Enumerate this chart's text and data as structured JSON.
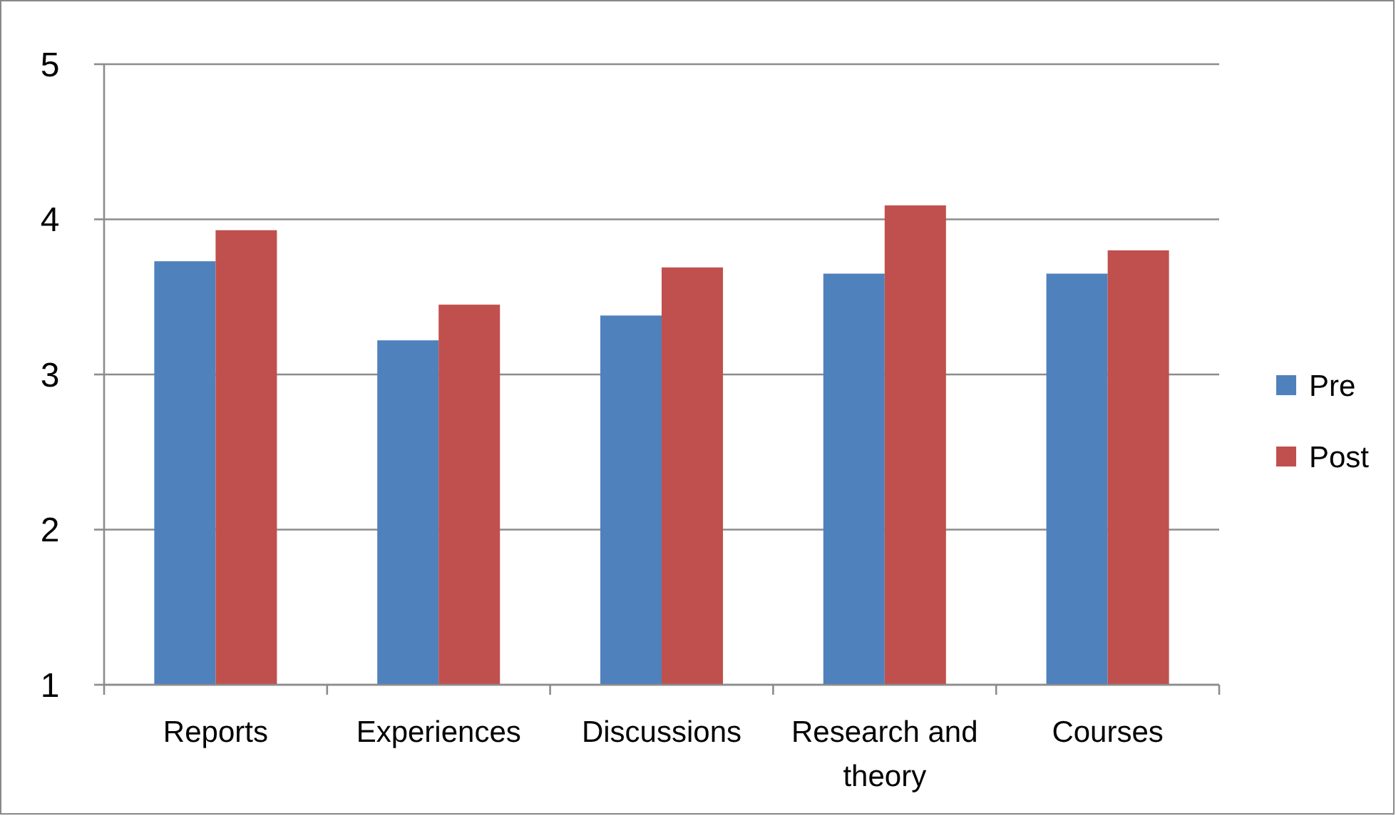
{
  "chart_data": {
    "type": "bar",
    "categories": [
      "Reports",
      "Experiences",
      "Discussions",
      "Research and theory",
      "Courses"
    ],
    "series": [
      {
        "name": "Pre",
        "color": "#4f81bd",
        "values": [
          3.73,
          3.22,
          3.38,
          3.65,
          3.65
        ]
      },
      {
        "name": "Post",
        "color": "#c0504d",
        "values": [
          3.93,
          3.45,
          3.69,
          4.09,
          3.8
        ]
      }
    ],
    "ylim": [
      1,
      5
    ],
    "yticks": [
      1,
      2,
      3,
      4,
      5
    ],
    "grid": "y",
    "legend": "right"
  }
}
